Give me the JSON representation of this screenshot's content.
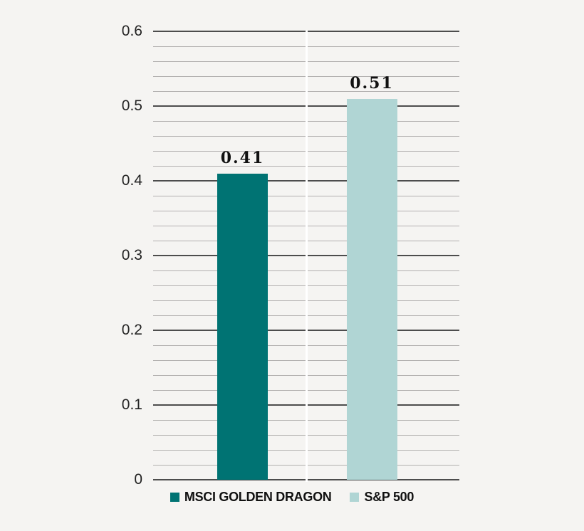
{
  "chart_data": {
    "type": "bar",
    "title": "",
    "categories": [
      "MSCI GOLDEN DRAGON",
      "S&P 500"
    ],
    "series": [
      {
        "name": "MSCI GOLDEN DRAGON",
        "value": 0.41,
        "value_label": "0.41",
        "color": "#007373"
      },
      {
        "name": "S&P 500",
        "value": 0.51,
        "value_label": "0.51",
        "color": "#B0D5D4"
      }
    ],
    "ylim": [
      0,
      0.6
    ],
    "ytick_values": [
      0,
      0.1,
      0.2,
      0.3,
      0.4,
      0.5,
      0.6
    ],
    "ytick_labels": [
      "0",
      "0.1",
      "0.2",
      "0.3",
      "0.4",
      "0.5",
      "0.6"
    ],
    "minor_gridline_step": 0.02,
    "grid": "horizontal major and minor lines, category separator gap",
    "legend_position": "bottom-center",
    "legend": [
      {
        "label": "MSCI GOLDEN DRAGON",
        "color": "#007373"
      },
      {
        "label": "S&P 500",
        "color": "#B0D5D4"
      }
    ]
  },
  "colors": {
    "background": "#F5F4F2",
    "grid_major": "#4D4D4D",
    "grid_minor": "#B2B0AF",
    "separator": "#FFFFFF",
    "text": "#222222",
    "value_label_text": "#111111"
  }
}
